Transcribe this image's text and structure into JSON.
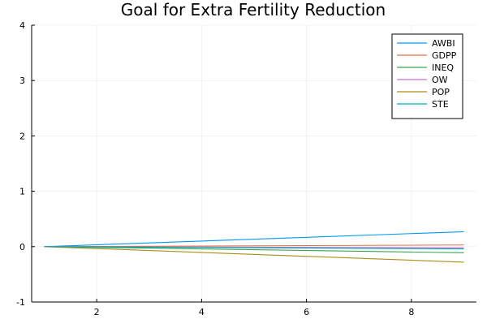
{
  "chart_data": {
    "type": "line",
    "title": "Goal for Extra Fertility Reduction",
    "xlabel": "",
    "ylabel": "",
    "xlim": [
      0.76,
      9.24
    ],
    "ylim": [
      -1,
      4
    ],
    "x_ticks": [
      2,
      4,
      6,
      8
    ],
    "y_ticks": [
      -1,
      0,
      1,
      2,
      3,
      4
    ],
    "grid": true,
    "legend_position": "top-right",
    "series": [
      {
        "name": "AWBI",
        "color": "#009AFA",
        "x": [
          1,
          9
        ],
        "y": [
          0,
          0.27
        ]
      },
      {
        "name": "GDPP",
        "color": "#E36F47",
        "x": [
          1,
          9
        ],
        "y": [
          0,
          0.03
        ]
      },
      {
        "name": "INEQ",
        "color": "#3EA44E",
        "x": [
          1,
          9
        ],
        "y": [
          0,
          -0.11
        ]
      },
      {
        "name": "OW",
        "color": "#C371D2",
        "x": [
          1,
          9
        ],
        "y": [
          0,
          -0.02
        ]
      },
      {
        "name": "POP",
        "color": "#AC8D18",
        "x": [
          1,
          9
        ],
        "y": [
          0,
          -0.28
        ]
      },
      {
        "name": "STE",
        "color": "#00AAAE",
        "x": [
          1,
          9
        ],
        "y": [
          0,
          -0.04
        ]
      }
    ]
  }
}
